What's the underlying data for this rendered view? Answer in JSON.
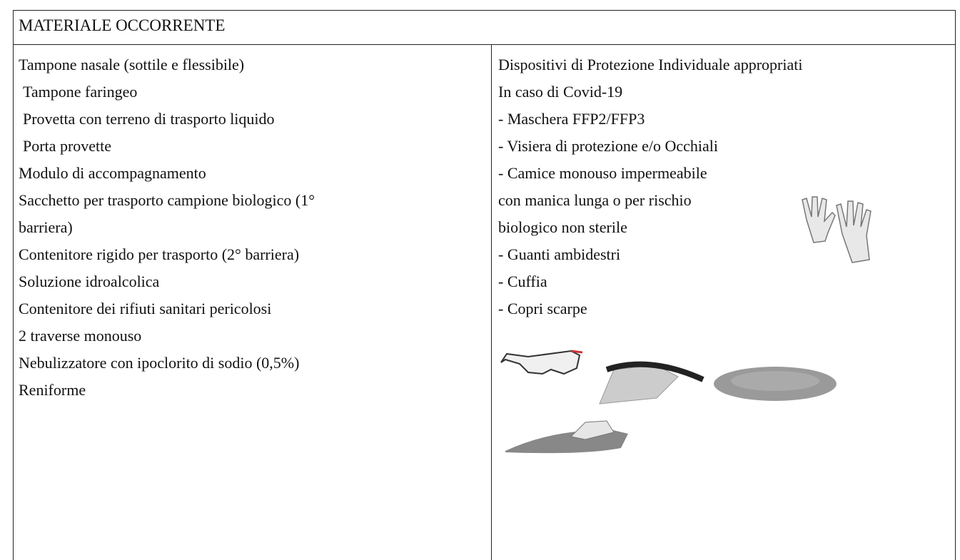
{
  "header": {
    "title": "MATERIALE OCCORRENTE"
  },
  "left": {
    "lines": [
      "Tampone nasale (sottile e flessibile)",
      "Tampone faringeo",
      "Provetta con terreno di trasporto liquido",
      "Porta provette",
      "Modulo di accompagnamento",
      "Sacchetto per trasporto campione biologico (1°",
      "barriera)",
      "Contenitore rigido per trasporto (2° barriera)",
      "Soluzione idroalcolica",
      "Contenitore dei rifiuti sanitari pericolosi",
      "2 traverse monouso",
      "Nebulizzatore con ipoclorito di sodio (0,5%)",
      "Reniforme"
    ]
  },
  "right": {
    "lines": [
      "Dispositivi di Protezione Individuale appropriati",
      "In caso di Covid-19",
      "- Maschera FFP2/FFP3",
      "- Visiera di protezione e/o Occhiali",
      "- Camice monouso impermeabile",
      "con manica lunga o per rischio",
      "biologico non sterile",
      "- Guanti ambidestri",
      "- Cuffia",
      "- Copri scarpe"
    ]
  }
}
